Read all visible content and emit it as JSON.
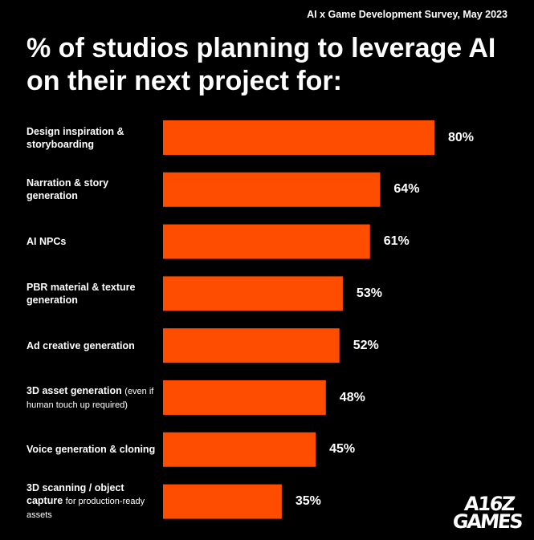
{
  "header": {
    "survey_label": "AI x Game Development Survey, May 2023"
  },
  "colors": {
    "bar": "#ff4d00",
    "background": "#000000",
    "text": "#ffffff"
  },
  "logo": {
    "line1": "A16Z",
    "line2": "GAMES"
  },
  "chart_data": {
    "type": "bar",
    "orientation": "horizontal",
    "title": "% of studios planning to leverage AI on their next project for:",
    "categories": [
      {
        "label": "Design inspiration & storyboarding",
        "note": ""
      },
      {
        "label": "Narration & story generation",
        "note": ""
      },
      {
        "label": "AI NPCs",
        "note": ""
      },
      {
        "label": "PBR material & texture generation",
        "note": ""
      },
      {
        "label": "Ad creative generation",
        "note": ""
      },
      {
        "label": "3D asset generation",
        "note": "(even if human touch up required)"
      },
      {
        "label": "Voice generation & cloning",
        "note": ""
      },
      {
        "label": "3D scanning / object capture",
        "note": "for production-ready assets"
      }
    ],
    "values": [
      80,
      64,
      61,
      53,
      52,
      48,
      45,
      35
    ],
    "value_labels": [
      "80%",
      "64%",
      "61%",
      "53%",
      "52%",
      "48%",
      "45%",
      "35%"
    ],
    "xlim": [
      0,
      100
    ],
    "grid": false,
    "legend": "none"
  }
}
